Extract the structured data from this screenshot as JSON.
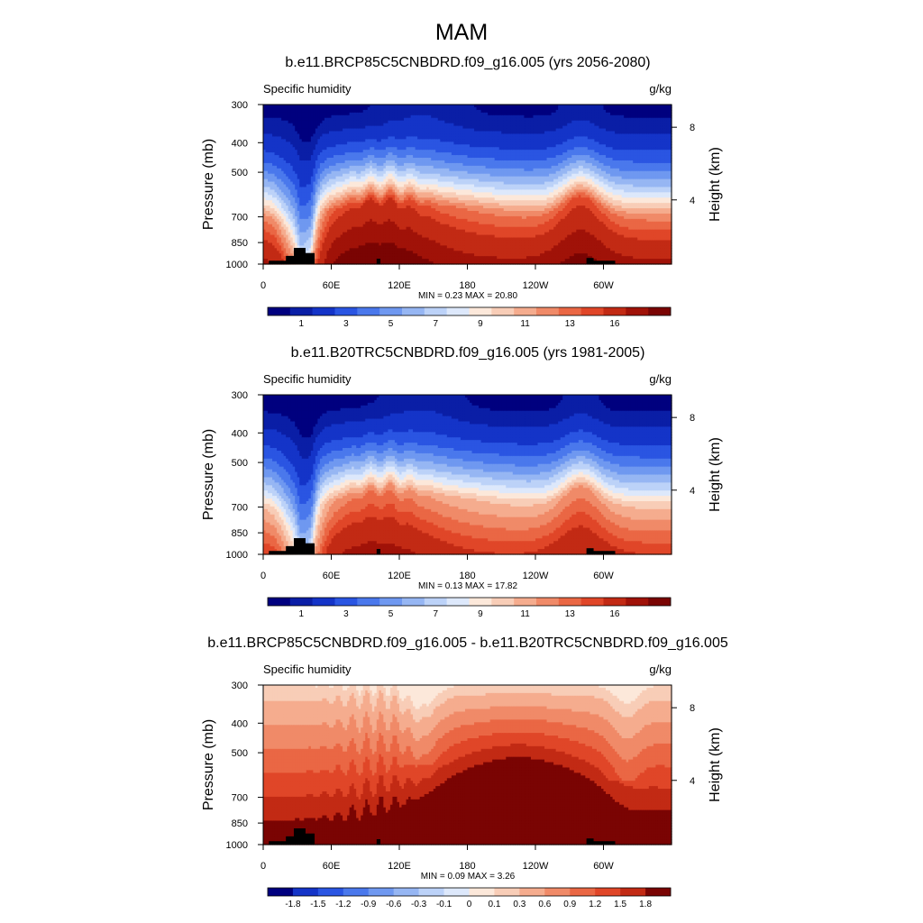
{
  "figure": {
    "title": "MAM",
    "colors": {
      "sequential": [
        "#00007f",
        "#0a1ea6",
        "#1434c8",
        "#2a55e2",
        "#4a78ec",
        "#6f98f0",
        "#96b6f3",
        "#bcd2f8",
        "#dde8fb",
        "#fce8da",
        "#f8cdb7",
        "#f5ac8e",
        "#f08a68",
        "#ea6744",
        "#e04628",
        "#c22a14",
        "#a01208",
        "#7a0403"
      ],
      "diverging": [
        "#00007f",
        "#1434c8",
        "#2a55e2",
        "#4a78ec",
        "#6f98f0",
        "#96b6f3",
        "#bcd2f8",
        "#dde8fb",
        "#fce8da",
        "#f8cdb7",
        "#f5ac8e",
        "#f08a68",
        "#ea6744",
        "#e04628",
        "#c22a14",
        "#7a0403"
      ],
      "topography": "#000000"
    }
  },
  "chart_data": [
    {
      "type": "heatmap",
      "title": "b.e11.BRCP85C5CNBDRD.f09_g16.005 (yrs 2056-2080)",
      "left_label": "Specific humidity",
      "right_label": "g/kg",
      "ylabel": "Pressure (mb)",
      "ylabel_right": "Height (km)",
      "yticks": [
        "300",
        "400",
        "500",
        "700",
        "850",
        "1000"
      ],
      "yticks_right": [
        "8",
        "4"
      ],
      "xticks": [
        "0",
        "60E",
        "120E",
        "180",
        "120W",
        "60W"
      ],
      "x_range": [
        0,
        360
      ],
      "y_range_mb": [
        1000,
        300
      ],
      "stats": "MIN =   0.23  MAX =  20.80",
      "min": 0.23,
      "max": 20.8,
      "colorbar_labels": [
        "1",
        "3",
        "5",
        "7",
        "9",
        "11",
        "13",
        "16"
      ],
      "levels": [
        0.5,
        1,
        2,
        3,
        4,
        5,
        6,
        7,
        8,
        9,
        10,
        11,
        12,
        13,
        14,
        16,
        18
      ],
      "palette": "sequential"
    },
    {
      "type": "heatmap",
      "title": "b.e11.B20TRC5CNBDRD.f09_g16.005 (yrs 1981-2005)",
      "left_label": "Specific humidity",
      "right_label": "g/kg",
      "ylabel": "Pressure (mb)",
      "ylabel_right": "Height (km)",
      "yticks": [
        "300",
        "400",
        "500",
        "700",
        "850",
        "1000"
      ],
      "yticks_right": [
        "8",
        "4"
      ],
      "xticks": [
        "0",
        "60E",
        "120E",
        "180",
        "120W",
        "60W"
      ],
      "x_range": [
        0,
        360
      ],
      "y_range_mb": [
        1000,
        300
      ],
      "stats": "MIN =   0.13  MAX =  17.82",
      "min": 0.13,
      "max": 17.82,
      "colorbar_labels": [
        "1",
        "3",
        "5",
        "7",
        "9",
        "11",
        "13",
        "16"
      ],
      "levels": [
        0.5,
        1,
        2,
        3,
        4,
        5,
        6,
        7,
        8,
        9,
        10,
        11,
        12,
        13,
        14,
        16,
        18
      ],
      "palette": "sequential"
    },
    {
      "type": "heatmap",
      "title": "b.e11.BRCP85C5CNBDRD.f09_g16.005 - b.e11.B20TRC5CNBDRD.f09_g16.005",
      "left_label": "Specific humidity",
      "right_label": "g/kg",
      "ylabel": "Pressure (mb)",
      "ylabel_right": "Height (km)",
      "yticks": [
        "300",
        "400",
        "500",
        "700",
        "850",
        "1000"
      ],
      "yticks_right": [
        "8",
        "4"
      ],
      "xticks": [
        "0",
        "60E",
        "120E",
        "180",
        "120W",
        "60W"
      ],
      "x_range": [
        0,
        360
      ],
      "y_range_mb": [
        1000,
        300
      ],
      "stats": "MIN =   0.09  MAX =   3.26",
      "min": 0.09,
      "max": 3.26,
      "colorbar_labels": [
        "-1.8",
        "-1.5",
        "-1.2",
        "-0.9",
        "-0.6",
        "-0.3",
        "-0.1",
        "0",
        "0.1",
        "0.3",
        "0.6",
        "0.9",
        "1.2",
        "1.5",
        "1.8"
      ],
      "levels": [
        -1.8,
        -1.5,
        -1.2,
        -0.9,
        -0.6,
        -0.3,
        -0.1,
        0,
        0.1,
        0.3,
        0.6,
        0.9,
        1.2,
        1.5,
        1.8
      ],
      "palette": "diverging"
    }
  ]
}
